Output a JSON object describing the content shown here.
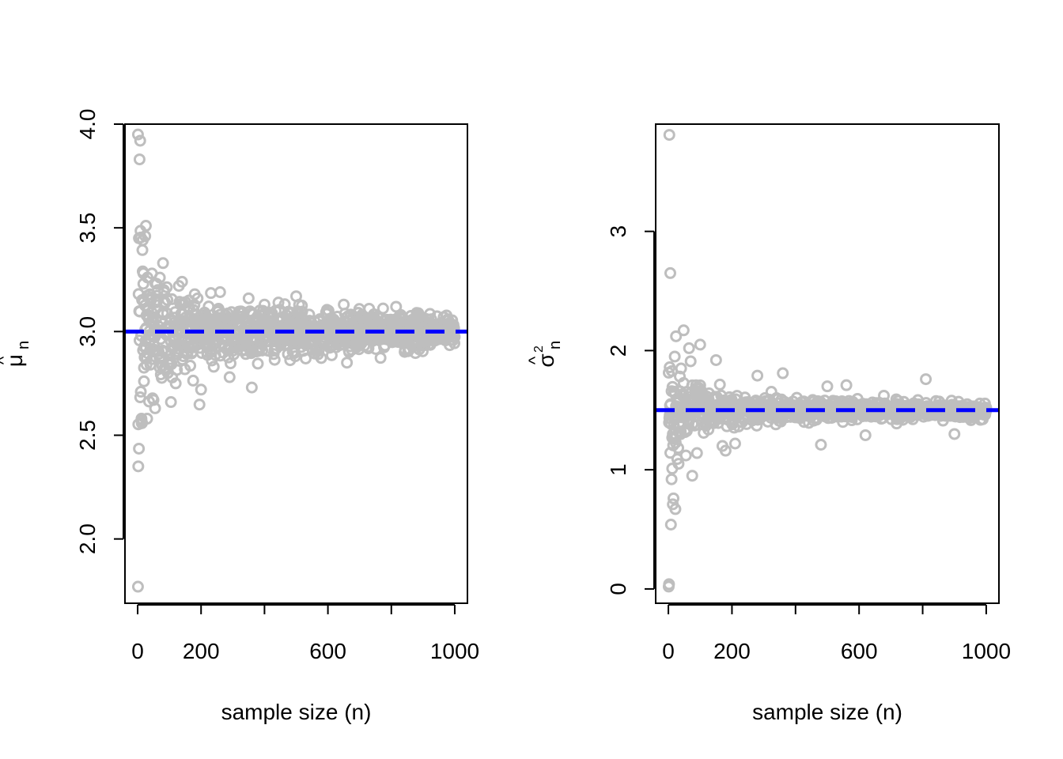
{
  "colors": {
    "points": "#bebebe",
    "reference": "#0000ff"
  },
  "chart_data": [
    {
      "type": "scatter",
      "xlabel": "sample size (n)",
      "ylabel": "μ̂n",
      "ylabel_main": "μ",
      "ylabel_sub": "n",
      "ylabel_hat": "^",
      "xlim": [
        -40,
        1040
      ],
      "ylim": [
        1.69,
        4.0
      ],
      "x_ticks": [
        0,
        200,
        400,
        600,
        800,
        1000
      ],
      "x_tick_labels": [
        "0",
        "200",
        "",
        "600",
        "",
        "1000"
      ],
      "y_ticks": [
        2.0,
        2.5,
        3.0,
        3.5,
        4.0
      ],
      "y_tick_labels": [
        "2.0",
        "2.5",
        "3.0",
        "3.5",
        "4.0"
      ],
      "reference_line": 3.0,
      "grid": false,
      "legend": "none",
      "highlight_points": [
        {
          "x": 1,
          "y": 1.77
        },
        {
          "x": 2,
          "y": 2.35
        },
        {
          "x": 4,
          "y": 3.45
        },
        {
          "x": 6,
          "y": 3.83
        },
        {
          "x": 8,
          "y": 3.92
        },
        {
          "x": 10,
          "y": 2.71
        },
        {
          "x": 12,
          "y": 2.58
        },
        {
          "x": 14,
          "y": 2.56
        },
        {
          "x": 16,
          "y": 3.29
        },
        {
          "x": 18,
          "y": 3.23
        },
        {
          "x": 20,
          "y": 2.76
        },
        {
          "x": 22,
          "y": 2.93
        },
        {
          "x": 24,
          "y": 3.46
        },
        {
          "x": 26,
          "y": 3.51
        },
        {
          "x": 28,
          "y": 2.84
        },
        {
          "x": 30,
          "y": 2.58
        },
        {
          "x": 34,
          "y": 3.11
        },
        {
          "x": 38,
          "y": 3.18
        },
        {
          "x": 40,
          "y": 2.84
        },
        {
          "x": 45,
          "y": 3.28
        },
        {
          "x": 50,
          "y": 2.67
        },
        {
          "x": 55,
          "y": 2.63
        },
        {
          "x": 60,
          "y": 3.23
        },
        {
          "x": 70,
          "y": 3.26
        },
        {
          "x": 80,
          "y": 3.33
        },
        {
          "x": 95,
          "y": 2.8
        },
        {
          "x": 105,
          "y": 2.66
        },
        {
          "x": 120,
          "y": 2.75
        },
        {
          "x": 130,
          "y": 3.22
        },
        {
          "x": 140,
          "y": 3.24
        },
        {
          "x": 180,
          "y": 3.18
        },
        {
          "x": 200,
          "y": 2.72
        },
        {
          "x": 240,
          "y": 2.83
        },
        {
          "x": 260,
          "y": 3.19
        },
        {
          "x": 290,
          "y": 2.78
        },
        {
          "x": 350,
          "y": 3.16
        },
        {
          "x": 400,
          "y": 3.13
        },
        {
          "x": 500,
          "y": 3.17
        },
        {
          "x": 530,
          "y": 2.87
        },
        {
          "x": 650,
          "y": 3.13
        },
        {
          "x": 660,
          "y": 2.85
        },
        {
          "x": 730,
          "y": 3.11
        },
        {
          "x": 830,
          "y": 3.08
        }
      ],
      "band": {
        "n_min": 1,
        "n_max": 1000,
        "center": 3.0,
        "spread_scale": 1.2,
        "description_note": "cloud of running sample means converging to 3.0"
      }
    },
    {
      "type": "scatter",
      "xlabel": "sample size (n)",
      "ylabel": "σ̂²n",
      "ylabel_main": "σ",
      "ylabel_sub": "n",
      "ylabel_hat": "^",
      "ylabel_sup": "2",
      "xlim": [
        -40,
        1040
      ],
      "ylim": [
        -0.12,
        3.9
      ],
      "x_ticks": [
        0,
        200,
        400,
        600,
        800,
        1000
      ],
      "x_tick_labels": [
        "0",
        "200",
        "",
        "600",
        "",
        "1000"
      ],
      "y_ticks": [
        0,
        1,
        2,
        3
      ],
      "y_tick_labels": [
        "0",
        "1",
        "2",
        "3"
      ],
      "reference_line": 1.5,
      "grid": false,
      "legend": "none",
      "highlight_points": [
        {
          "x": 1,
          "y": 0.02
        },
        {
          "x": 2,
          "y": 0.04
        },
        {
          "x": 3,
          "y": 3.81
        },
        {
          "x": 4,
          "y": 1.86
        },
        {
          "x": 6,
          "y": 2.65
        },
        {
          "x": 8,
          "y": 0.54
        },
        {
          "x": 10,
          "y": 0.92
        },
        {
          "x": 12,
          "y": 1.01
        },
        {
          "x": 14,
          "y": 0.71
        },
        {
          "x": 16,
          "y": 0.76
        },
        {
          "x": 18,
          "y": 1.26
        },
        {
          "x": 20,
          "y": 1.95
        },
        {
          "x": 22,
          "y": 0.67
        },
        {
          "x": 24,
          "y": 2.12
        },
        {
          "x": 28,
          "y": 1.09
        },
        {
          "x": 32,
          "y": 1.05
        },
        {
          "x": 40,
          "y": 1.85
        },
        {
          "x": 48,
          "y": 2.17
        },
        {
          "x": 55,
          "y": 1.12
        },
        {
          "x": 65,
          "y": 2.02
        },
        {
          "x": 70,
          "y": 1.91
        },
        {
          "x": 75,
          "y": 0.95
        },
        {
          "x": 90,
          "y": 1.14
        },
        {
          "x": 100,
          "y": 2.05
        },
        {
          "x": 150,
          "y": 1.92
        },
        {
          "x": 170,
          "y": 1.2
        },
        {
          "x": 180,
          "y": 1.16
        },
        {
          "x": 210,
          "y": 1.22
        },
        {
          "x": 280,
          "y": 1.79
        },
        {
          "x": 360,
          "y": 1.81
        },
        {
          "x": 480,
          "y": 1.21
        },
        {
          "x": 500,
          "y": 1.7
        },
        {
          "x": 560,
          "y": 1.71
        },
        {
          "x": 620,
          "y": 1.29
        },
        {
          "x": 810,
          "y": 1.76
        },
        {
          "x": 900,
          "y": 1.3
        }
      ],
      "band": {
        "n_min": 1,
        "n_max": 1000,
        "center": 1.5,
        "spread_scale": 1.0,
        "description_note": "cloud of running sample variances converging to 1.5"
      }
    }
  ]
}
